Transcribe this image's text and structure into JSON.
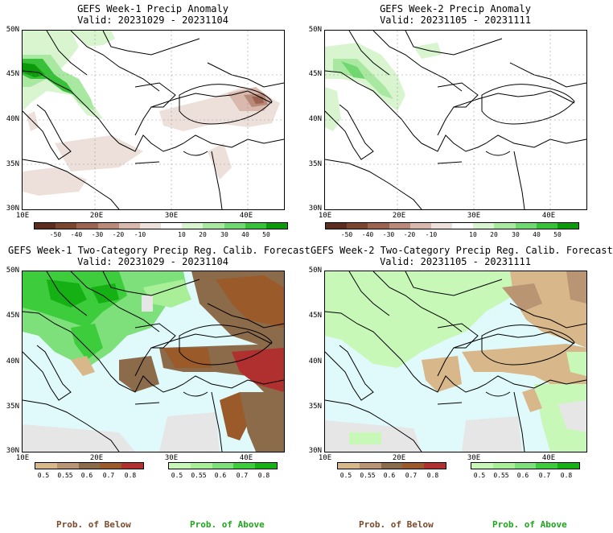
{
  "panels": [
    {
      "title1": "GEFS Week-1 Precip Anomaly",
      "title2": "Valid: 20231029 - 20231104"
    },
    {
      "title1": "GEFS Week-2 Precip Anomaly",
      "title2": "Valid: 20231105 - 20231111"
    },
    {
      "title1": "GEFS Week-1 Two-Category Precip Reg. Calib. Forecast",
      "title2": "Valid: 20231029 - 20231104"
    },
    {
      "title1": "GEFS Week-2 Two-Category Precip Reg. Calib. Forecast",
      "title2": "Valid: 20231105 - 20231111"
    }
  ],
  "lat_labels": [
    "50N",
    "45N",
    "40N",
    "35N",
    "30N"
  ],
  "lon_labels": [
    "10E",
    "20E",
    "30E",
    "40E"
  ],
  "anom_colorbar": {
    "labels": [
      "-50",
      "-40",
      "-30",
      "-20",
      "-10",
      "10",
      "20",
      "30",
      "40",
      "50"
    ],
    "colors": [
      "#5a2d1e",
      "#7b4630",
      "#9a6450",
      "#b98a7a",
      "#d9b8ae",
      "#ede0da",
      "#ffffff",
      "#d8f5d0",
      "#a8e8a0",
      "#70d870",
      "#38c038",
      "#0a9a0a"
    ]
  },
  "prob_below": {
    "labels": [
      "0.5",
      "0.55",
      "0.6",
      "0.7",
      "0.8"
    ],
    "colors": [
      "#d8b88a",
      "#b99573",
      "#8b6b4a",
      "#9a5a2a",
      "#b03030"
    ],
    "footer": "Prob. of Below"
  },
  "prob_above": {
    "labels": [
      "0.5",
      "0.55",
      "0.6",
      "0.7",
      "0.8"
    ],
    "colors": [
      "#c8f8b8",
      "#a8ef98",
      "#7de07a",
      "#3ccc3c",
      "#14b014"
    ],
    "footer": "Prob. of Above"
  }
}
